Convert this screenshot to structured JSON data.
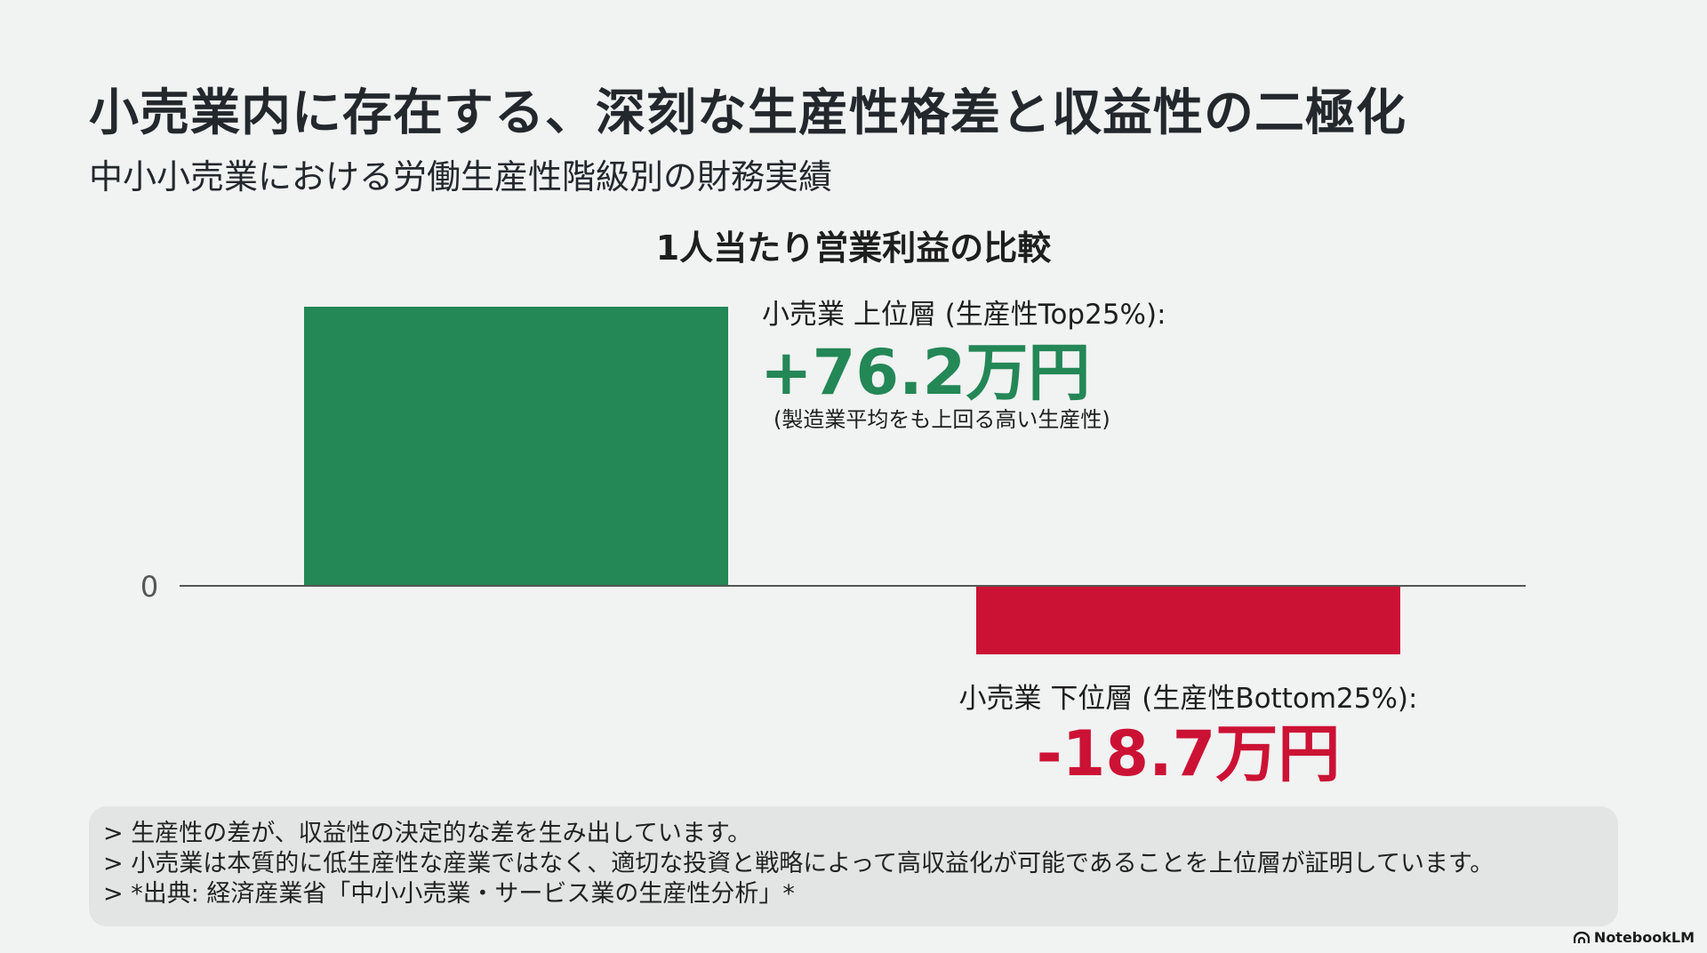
{
  "slide": {
    "title": "小売業内に存在する、深刻な生産性格差と収益性の二極化",
    "subtitle": "中小小売業における労働生産性階級別の財務実績"
  },
  "chart_data": {
    "type": "bar",
    "title": "1人当たり営業利益の比較",
    "categories": [
      "小売業 上位層 (生産性Top25%):",
      "小売業 下位層 (生産性Bottom25%):"
    ],
    "values": [
      76.2,
      -18.7
    ],
    "value_labels": [
      "+76.2万円",
      "-18.7万円"
    ],
    "notes": [
      "(製造業平均をも上回る高い生産性)",
      ""
    ],
    "bar_colors": [
      "#238756",
      "#cc1234"
    ],
    "value_label_colors": [
      "#238756",
      "#cc1234"
    ],
    "y_tick_labels": [
      "0"
    ],
    "grid": false,
    "legend": "none"
  },
  "footer": {
    "lines": [
      "> 生産性の差が、収益性の決定的な差を生み出しています。",
      "> 小売業は本質的に低生産性な産業ではなく、適切な投資と戦略によって高収益化が可能であることを上位層が証明しています。",
      "> *出典: 経済産業省「中小小売業・サービス業の生産性分析」*"
    ]
  },
  "brand": {
    "name": "NotebookLM",
    "icon": "notebooklm-logo-icon"
  }
}
